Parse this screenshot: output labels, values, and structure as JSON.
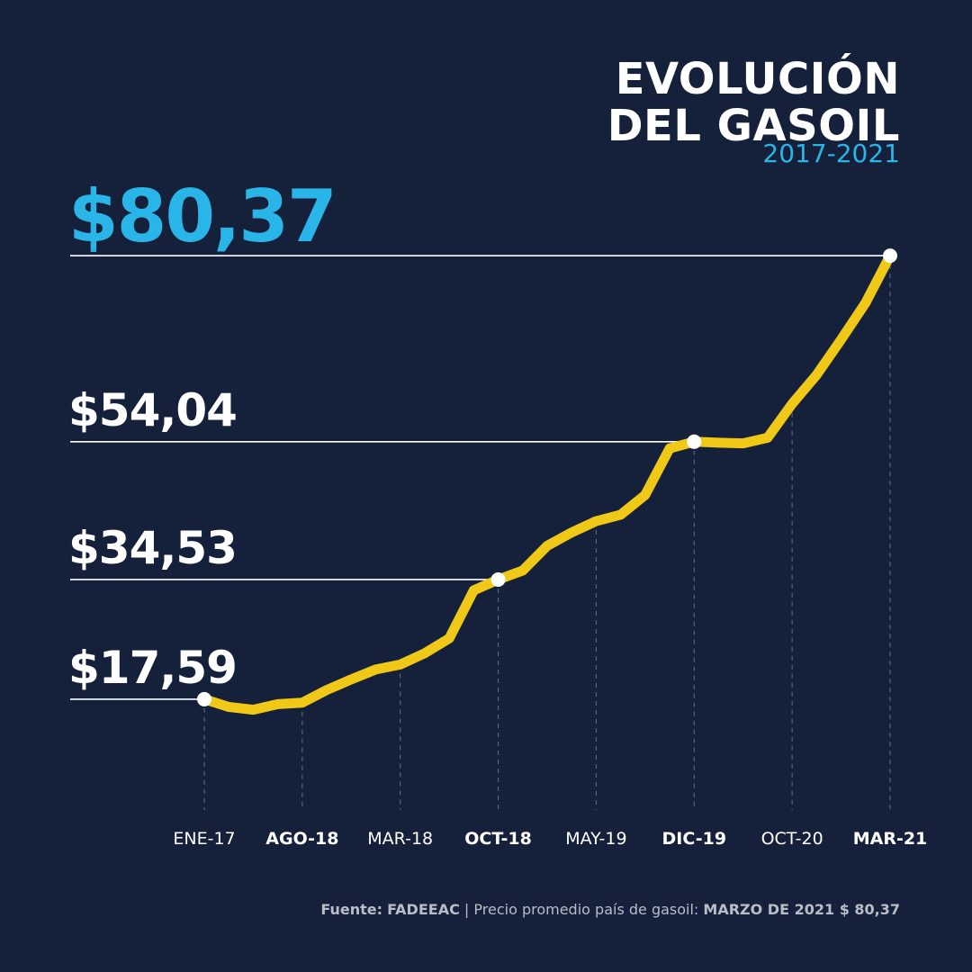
{
  "chart_data": {
    "type": "line",
    "title": "EVOLUCIÓN DEL GASOIL",
    "subtitle": "2017-2021",
    "categories": [
      "ENE-17",
      null,
      null,
      null,
      "AGO-18",
      null,
      null,
      null,
      "MAR-18",
      null,
      null,
      null,
      "OCT-18",
      null,
      null,
      null,
      "MAY-19",
      null,
      null,
      null,
      "DIC-19",
      null,
      null,
      null,
      "OCT-20",
      null,
      null,
      null,
      "MAR-21"
    ],
    "values": [
      17.59,
      16.5,
      16.1,
      16.9,
      17.1,
      18.9,
      20.4,
      21.8,
      22.5,
      24.1,
      26.2,
      33.0,
      34.53,
      35.8,
      39.3,
      41.2,
      42.8,
      43.7,
      46.5,
      53.1,
      54.04,
      53.9,
      53.8,
      54.6,
      59.4,
      63.5,
      68.5,
      73.7,
      80.37
    ],
    "color": "#f0c817",
    "ylim": [
      0,
      85
    ],
    "annotations": [
      {
        "value": 17.59,
        "label": "$17,59"
      },
      {
        "value": 34.53,
        "label": "$34,53"
      },
      {
        "value": 54.04,
        "label": "$54,04"
      },
      {
        "value": 80.37,
        "label": "$80,37"
      }
    ],
    "source": {
      "label": "Fuente:",
      "name": "FADEEAC",
      "text": "| Precio promedio país de gasoil:",
      "highlight": "MARZO DE 2021 $ 80,37"
    }
  }
}
